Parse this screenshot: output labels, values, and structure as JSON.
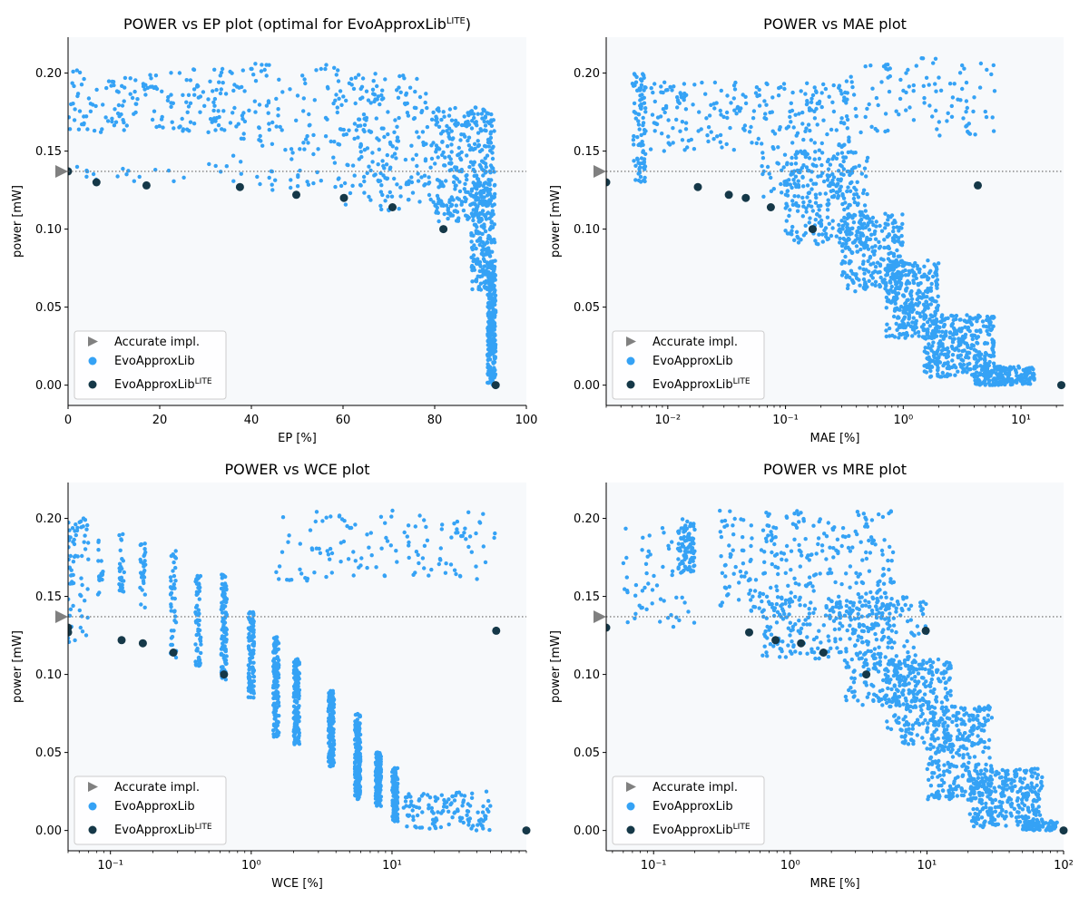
{
  "colors": {
    "background": "#f7f9fb",
    "evo": "#35a2f5",
    "lite": "#153848",
    "accurate": "#808080",
    "refline": "#808080"
  },
  "legend": {
    "accurate": "Accurate impl.",
    "evo": "EvoApproxLib",
    "lite_base": "EvoApproxLib",
    "lite_sup": "LITE"
  },
  "chart_data": [
    {
      "type": "scatter",
      "title": "POWER vs EP plot (optimal for EvoApproxLib",
      "title_sup": "LITE",
      "title_suffix": ")",
      "xlabel": "EP [%]",
      "ylabel": "power [mW]",
      "xscale": "linear",
      "xlim": [
        0,
        100
      ],
      "ylim": [
        -0.013,
        0.223
      ],
      "xticks": [
        0,
        20,
        40,
        60,
        80,
        100
      ],
      "xtick_labels": [
        "0",
        "20",
        "40",
        "60",
        "80",
        "100"
      ],
      "yticks": [
        0,
        0.05,
        0.1,
        0.15,
        0.2
      ],
      "ytick_labels": [
        "0.00",
        "0.05",
        "0.10",
        "0.15",
        "0.20"
      ],
      "legend_position": "lower-left",
      "accurate": {
        "x": 0,
        "y": 0.137
      },
      "reference_y": 0.137,
      "lite": [
        {
          "x": 0,
          "y": 0.137
        },
        {
          "x": 6.2,
          "y": 0.13
        },
        {
          "x": 17.1,
          "y": 0.128
        },
        {
          "x": 37.5,
          "y": 0.127
        },
        {
          "x": 49.8,
          "y": 0.122
        },
        {
          "x": 60.2,
          "y": 0.12
        },
        {
          "x": 70.8,
          "y": 0.114
        },
        {
          "x": 81.9,
          "y": 0.1
        },
        {
          "x": 93.3,
          "y": 0.0
        }
      ],
      "evo_clusters": [
        {
          "n": 170,
          "x": [
            0,
            36
          ],
          "y": [
            0.162,
            0.203
          ]
        },
        {
          "n": 20,
          "x": [
            0,
            35
          ],
          "y": [
            0.13,
            0.142
          ]
        },
        {
          "n": 110,
          "x": [
            36,
            60
          ],
          "y": [
            0.14,
            0.208
          ]
        },
        {
          "n": 25,
          "x": [
            36,
            60
          ],
          "y": [
            0.125,
            0.138
          ]
        },
        {
          "n": 170,
          "x": [
            60,
            80
          ],
          "y": [
            0.13,
            0.2
          ]
        },
        {
          "n": 40,
          "x": [
            60,
            80
          ],
          "y": [
            0.112,
            0.13
          ]
        },
        {
          "n": 300,
          "x": [
            80,
            93
          ],
          "y": [
            0.105,
            0.178
          ]
        },
        {
          "n": 220,
          "x": [
            88,
            93.2
          ],
          "y": [
            0.06,
            0.13
          ]
        },
        {
          "n": 280,
          "x": [
            91.5,
            93.3
          ],
          "y": [
            0.0,
            0.08
          ]
        }
      ]
    },
    {
      "type": "scatter",
      "title": "POWER vs MAE plot",
      "title_sup": "",
      "title_suffix": "",
      "xlabel": "MAE [%]",
      "ylabel": "power [mW]",
      "xscale": "log",
      "xlim": [
        0.003,
        23
      ],
      "ylim": [
        -0.013,
        0.223
      ],
      "xticks": [
        0.01,
        0.1,
        1,
        10
      ],
      "xtick_labels": [
        "10⁻²",
        "10⁻¹",
        "10⁰",
        "10¹"
      ],
      "yticks": [
        0,
        0.05,
        0.1,
        0.15,
        0.2
      ],
      "ytick_labels": [
        "0.00",
        "0.05",
        "0.10",
        "0.15",
        "0.20"
      ],
      "legend_position": "lower-left",
      "accurate": {
        "x": 0.003,
        "y": 0.137
      },
      "reference_y": 0.137,
      "lite": [
        {
          "x": 0.003,
          "y": 0.13
        },
        {
          "x": 0.018,
          "y": 0.127
        },
        {
          "x": 0.033,
          "y": 0.122
        },
        {
          "x": 0.046,
          "y": 0.12
        },
        {
          "x": 0.075,
          "y": 0.114
        },
        {
          "x": 0.17,
          "y": 0.1
        },
        {
          "x": 4.3,
          "y": 0.128
        },
        {
          "x": 22,
          "y": 0.0
        }
      ],
      "evo_clusters": [
        {
          "n": 90,
          "x": [
            0.005,
            0.0065
          ],
          "y": [
            0.13,
            0.2
          ]
        },
        {
          "n": 120,
          "x": [
            0.007,
            0.06
          ],
          "y": [
            0.15,
            0.195
          ]
        },
        {
          "n": 180,
          "x": [
            0.06,
            0.4
          ],
          "y": [
            0.12,
            0.195
          ]
        },
        {
          "n": 100,
          "x": [
            0.3,
            6
          ],
          "y": [
            0.16,
            0.21
          ]
        },
        {
          "n": 250,
          "x": [
            0.1,
            0.5
          ],
          "y": [
            0.09,
            0.15
          ]
        },
        {
          "n": 250,
          "x": [
            0.3,
            1
          ],
          "y": [
            0.06,
            0.11
          ]
        },
        {
          "n": 300,
          "x": [
            0.7,
            2
          ],
          "y": [
            0.03,
            0.08
          ]
        },
        {
          "n": 350,
          "x": [
            1.5,
            6
          ],
          "y": [
            0.005,
            0.045
          ]
        },
        {
          "n": 200,
          "x": [
            4,
            13
          ],
          "y": [
            0.0,
            0.012
          ]
        }
      ]
    },
    {
      "type": "scatter",
      "title": "POWER vs WCE plot",
      "title_sup": "",
      "title_suffix": "",
      "xlabel": "WCE [%]",
      "ylabel": "power [mW]",
      "xscale": "log",
      "xlim": [
        0.05,
        90
      ],
      "ylim": [
        -0.013,
        0.223
      ],
      "xticks": [
        0.1,
        1,
        10
      ],
      "xtick_labels": [
        "10⁻¹",
        "10⁰",
        "10¹"
      ],
      "yticks": [
        0,
        0.05,
        0.1,
        0.15,
        0.2
      ],
      "ytick_labels": [
        "0.00",
        "0.05",
        "0.10",
        "0.15",
        "0.20"
      ],
      "legend_position": "lower-left",
      "accurate": {
        "x": 0.05,
        "y": 0.137
      },
      "reference_y": 0.137,
      "lite": [
        {
          "x": 0.05,
          "y": 0.13
        },
        {
          "x": 0.05,
          "y": 0.127
        },
        {
          "x": 0.12,
          "y": 0.122
        },
        {
          "x": 0.17,
          "y": 0.12
        },
        {
          "x": 0.28,
          "y": 0.114
        },
        {
          "x": 0.64,
          "y": 0.1
        },
        {
          "x": 55,
          "y": 0.128
        },
        {
          "x": 90,
          "y": 0.0
        }
      ],
      "evo_bands": [
        {
          "x": 0.05,
          "y": [
            0.15,
            0.195
          ],
          "n": 15
        },
        {
          "x": 0.085,
          "y": [
            0.15,
            0.19
          ],
          "n": 20
        },
        {
          "x": 0.12,
          "y": [
            0.15,
            0.19
          ],
          "n": 25
        },
        {
          "x": 0.17,
          "y": [
            0.14,
            0.185
          ],
          "n": 30
        },
        {
          "x": 0.28,
          "y": [
            0.11,
            0.18
          ],
          "n": 45
        },
        {
          "x": 0.42,
          "y": [
            0.105,
            0.165
          ],
          "n": 60
        },
        {
          "x": 0.64,
          "y": [
            0.095,
            0.165
          ],
          "n": 110
        },
        {
          "x": 1.0,
          "y": [
            0.085,
            0.14
          ],
          "n": 110
        },
        {
          "x": 1.5,
          "y": [
            0.06,
            0.125
          ],
          "n": 140
        },
        {
          "x": 2.1,
          "y": [
            0.055,
            0.11
          ],
          "n": 150
        },
        {
          "x": 3.7,
          "y": [
            0.04,
            0.09
          ],
          "n": 160
        },
        {
          "x": 5.7,
          "y": [
            0.02,
            0.075
          ],
          "n": 200
        },
        {
          "x": 8.0,
          "y": [
            0.015,
            0.05
          ],
          "n": 140
        },
        {
          "x": 10.5,
          "y": [
            0.005,
            0.04
          ],
          "n": 120
        }
      ],
      "evo_clusters": [
        {
          "n": 120,
          "x": [
            12,
            50
          ],
          "y": [
            0.0,
            0.025
          ]
        },
        {
          "n": 130,
          "x": [
            1.5,
            55
          ],
          "y": [
            0.16,
            0.205
          ]
        },
        {
          "n": 60,
          "x": [
            0.05,
            0.07
          ],
          "y": [
            0.12,
            0.2
          ]
        }
      ]
    },
    {
      "type": "scatter",
      "title": "POWER vs MRE plot",
      "title_sup": "",
      "title_suffix": "",
      "xlabel": "MRE [%]",
      "ylabel": "power [mW]",
      "xscale": "log",
      "xlim": [
        0.045,
        100
      ],
      "ylim": [
        -0.013,
        0.223
      ],
      "xticks": [
        0.1,
        1,
        10,
        100
      ],
      "xtick_labels": [
        "10⁻¹",
        "10⁰",
        "10¹",
        "10²"
      ],
      "yticks": [
        0,
        0.05,
        0.1,
        0.15,
        0.2
      ],
      "ytick_labels": [
        "0.00",
        "0.05",
        "0.10",
        "0.15",
        "0.20"
      ],
      "legend_position": "lower-left",
      "accurate": {
        "x": 0.045,
        "y": 0.137
      },
      "reference_y": 0.137,
      "lite": [
        {
          "x": 0.045,
          "y": 0.13
        },
        {
          "x": 0.5,
          "y": 0.127
        },
        {
          "x": 0.78,
          "y": 0.122
        },
        {
          "x": 1.2,
          "y": 0.12
        },
        {
          "x": 1.75,
          "y": 0.114
        },
        {
          "x": 3.6,
          "y": 0.1
        },
        {
          "x": 9.8,
          "y": 0.128
        },
        {
          "x": 100,
          "y": 0.0
        }
      ],
      "evo_clusters": [
        {
          "n": 80,
          "x": [
            0.15,
            0.2
          ],
          "y": [
            0.165,
            0.2
          ]
        },
        {
          "n": 60,
          "x": [
            0.06,
            0.2
          ],
          "y": [
            0.13,
            0.195
          ]
        },
        {
          "n": 280,
          "x": [
            0.3,
            6
          ],
          "y": [
            0.14,
            0.205
          ]
        },
        {
          "n": 200,
          "x": [
            0.6,
            6
          ],
          "y": [
            0.11,
            0.15
          ]
        },
        {
          "n": 220,
          "x": [
            2.5,
            10
          ],
          "y": [
            0.08,
            0.15
          ]
        },
        {
          "n": 250,
          "x": [
            5,
            15
          ],
          "y": [
            0.055,
            0.11
          ]
        },
        {
          "n": 300,
          "x": [
            10,
            30
          ],
          "y": [
            0.02,
            0.08
          ]
        },
        {
          "n": 300,
          "x": [
            20,
            70
          ],
          "y": [
            0.002,
            0.04
          ]
        },
        {
          "n": 80,
          "x": [
            50,
            90
          ],
          "y": [
            0.0,
            0.006
          ]
        }
      ]
    }
  ]
}
